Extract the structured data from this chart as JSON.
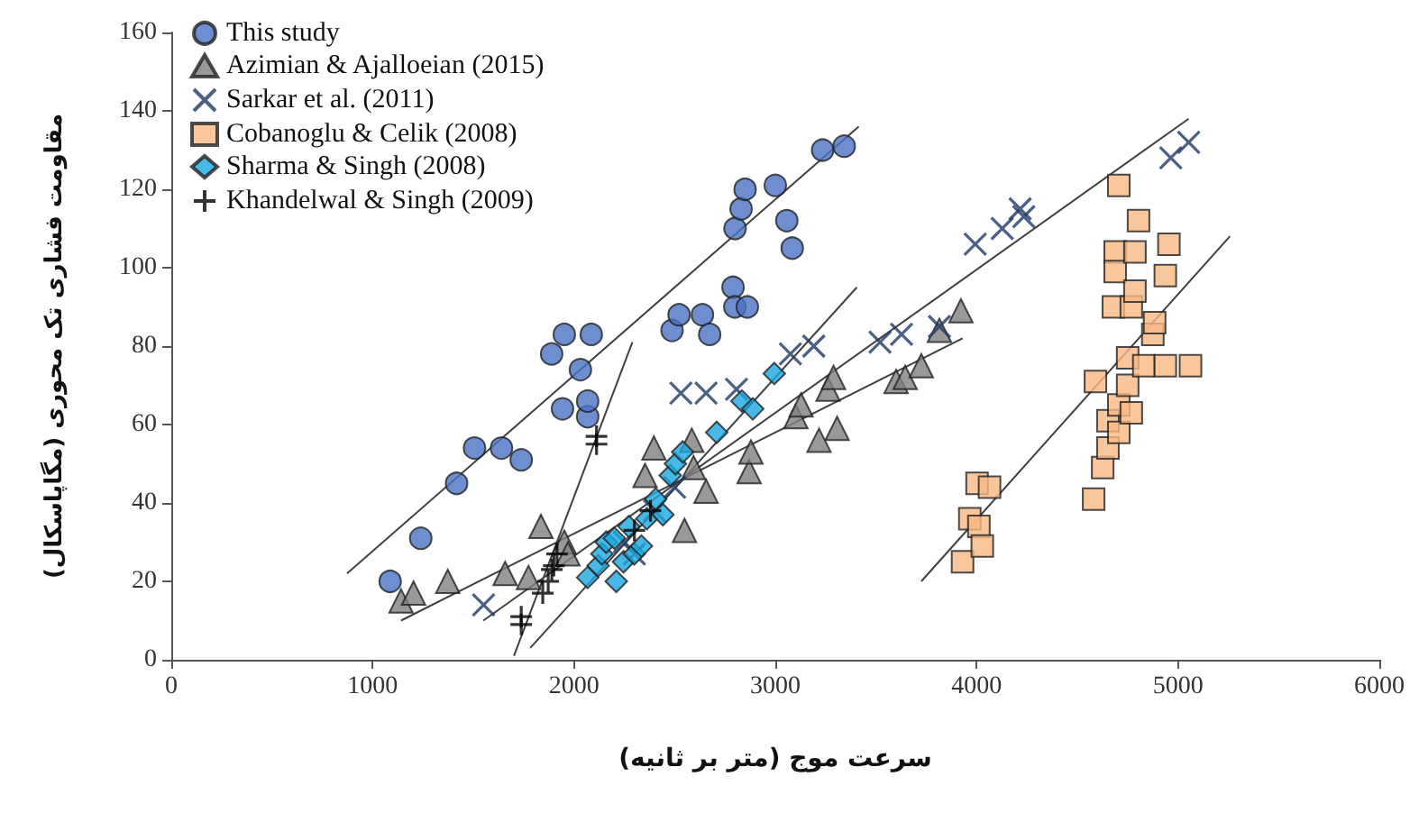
{
  "chart_data": {
    "type": "scatter",
    "xlabel": "سرعت موج (متر بر ثانیه)",
    "ylabel": "مقاومت فشاری تک محوری (مگاپاسکال)",
    "xlim": [
      0,
      6000
    ],
    "xticks": [
      0,
      1000,
      2000,
      3000,
      4000,
      5000,
      6000
    ],
    "ylim": [
      0,
      160
    ],
    "yticks": [
      0,
      20,
      40,
      60,
      80,
      100,
      120,
      140,
      160
    ],
    "grid": false,
    "legend": "top left",
    "series": [
      {
        "name": "This study",
        "color": "#4a72c4",
        "marker": "circle",
        "x": [
          1087,
          1239,
          1417,
          1506,
          1640,
          1738,
          1889,
          1943,
          1952,
          2032,
          2068,
          2068,
          2086,
          2487,
          2522,
          2638,
          2674,
          2790,
          2799,
          2861,
          2800,
          2830,
          2850,
          3000,
          3057,
          3084,
          3235,
          3342
        ],
        "values": [
          20,
          31,
          45,
          54,
          54,
          51,
          78,
          64,
          83,
          74,
          62,
          66,
          83,
          84,
          88,
          88,
          83,
          95,
          90,
          90,
          110,
          115,
          120,
          121,
          112,
          105,
          130,
          131
        ]
      },
      {
        "name": "Azimian & Ajalloeian (2015)",
        "color": "#7f7f7f",
        "marker": "triangle",
        "x": [
          1141,
          1203,
          1373,
          1658,
          1774,
          1836,
          1952,
          1970,
          2353,
          2397,
          2549,
          2585,
          2594,
          2656,
          2870,
          2879,
          3102,
          3128,
          3217,
          3262,
          3289,
          3307,
          3600,
          3645,
          3725,
          3815,
          3922
        ],
        "values": [
          15,
          17,
          20,
          22,
          21,
          34,
          30,
          27,
          47,
          54,
          33,
          56,
          49,
          43,
          48,
          53,
          62,
          65,
          56,
          69,
          72,
          59,
          71,
          72,
          75,
          84,
          89
        ]
      },
      {
        "name": "Sarkar et al. (2011)",
        "color": "#1f3864",
        "marker": "cross",
        "x": [
          1551,
          2250,
          2300,
          2400,
          2500,
          2531,
          2656,
          2807,
          3075,
          3191,
          3520,
          3627,
          3815,
          3993,
          4127,
          4216,
          4234,
          4964,
          5053
        ],
        "values": [
          14,
          30,
          27,
          38,
          44,
          68,
          68,
          69,
          78,
          80,
          81,
          83,
          85,
          106,
          110,
          115,
          113,
          128,
          132
        ]
      },
      {
        "name": "Cobanoglu & Celik (2008)",
        "color": "#f9b985",
        "marker": "square",
        "x": [
          3930,
          3966,
          4002,
          4011,
          4028,
          4064,
          4581,
          4590,
          4626,
          4652,
          4652,
          4706,
          4706,
          4706,
          4688,
          4688,
          4679,
          4750,
          4750,
          4768,
          4768,
          4786,
          4786,
          4804,
          4830,
          4875,
          4884,
          4937,
          4937,
          4955,
          5062
        ],
        "values": [
          25,
          36,
          45,
          34,
          29,
          44,
          41,
          71,
          49,
          61,
          54,
          58,
          65,
          121,
          104,
          99,
          90,
          70,
          77,
          63,
          90,
          94,
          104,
          112,
          75,
          83,
          86,
          75,
          98,
          106,
          75
        ]
      },
      {
        "name": "Sharma & Singh (2008)",
        "color": "#1aa7e0",
        "marker": "diamond",
        "x": [
          2068,
          2120,
          2139,
          2160,
          2201,
          2210,
          2246,
          2273,
          2299,
          2335,
          2362,
          2406,
          2442,
          2478,
          2504,
          2540,
          2709,
          2834,
          2888,
          2995
        ],
        "values": [
          21,
          24,
          27,
          30,
          31,
          20,
          25,
          34,
          27,
          29,
          36,
          41,
          37,
          47,
          50,
          53,
          58,
          66,
          64,
          73
        ]
      },
      {
        "name": "Khandelwal & Singh (2009)",
        "color": "#000000",
        "marker": "plus",
        "x": [
          1738,
          1738,
          1845,
          1872,
          1890,
          1900,
          1916,
          2112,
          2112,
          2300,
          2380
        ],
        "values": [
          9,
          11,
          17,
          20,
          23,
          24,
          27,
          55,
          57,
          33,
          38
        ]
      },
      {
        "type": "line",
        "color": "#404040",
        "x": [
          873,
          3414
        ],
        "values": [
          22,
          136
        ]
      },
      {
        "type": "line",
        "color": "#404040",
        "x": [
          1141,
          3930
        ],
        "values": [
          10,
          82
        ]
      },
      {
        "type": "line",
        "color": "#404040",
        "x": [
          1550,
          5053
        ],
        "values": [
          10,
          138
        ]
      },
      {
        "type": "line",
        "color": "#404040",
        "x": [
          3725,
          5258
        ],
        "values": [
          20,
          108
        ]
      },
      {
        "type": "line",
        "color": "#404040",
        "x": [
          1783,
          3405
        ],
        "values": [
          3,
          95
        ]
      },
      {
        "type": "line",
        "color": "#404040",
        "x": [
          1702,
          2290
        ],
        "values": [
          1,
          81
        ]
      }
    ]
  }
}
